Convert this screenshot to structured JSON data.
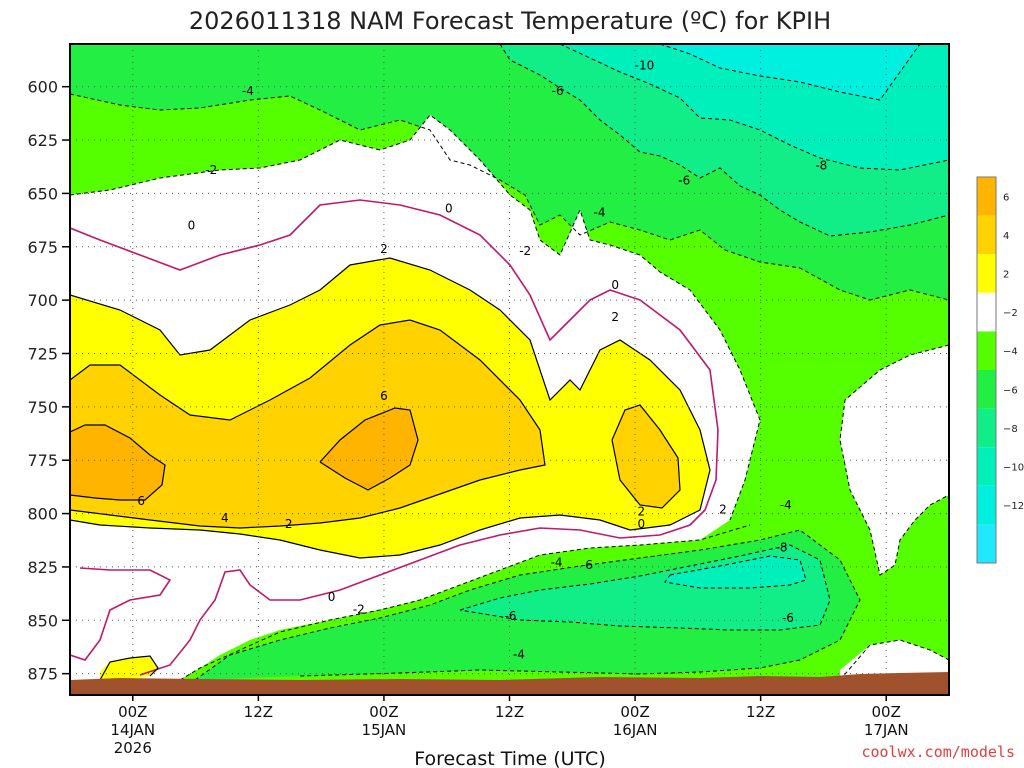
{
  "chart_data": {
    "type": "heatmap",
    "title": "2026011318 NAM Forecast Temperature (ºC) for KPIH",
    "xlabel": "Forecast Time (UTC)",
    "ylabel": "",
    "credit": "coolwx.com/models",
    "y_axis": {
      "ticks": [
        "600",
        "625",
        "650",
        "675",
        "700",
        "725",
        "750",
        "775",
        "800",
        "825",
        "850",
        "875"
      ],
      "range": [
        580,
        885
      ],
      "inverted": true,
      "unit": "hPa"
    },
    "x_axis": {
      "ticks": [
        {
          "time": "00Z",
          "date": "14JAN",
          "year": "2026"
        },
        {
          "time": "12Z",
          "date": "",
          "year": ""
        },
        {
          "time": "00Z",
          "date": "15JAN",
          "year": ""
        },
        {
          "time": "12Z",
          "date": "",
          "year": ""
        },
        {
          "time": "00Z",
          "date": "16JAN",
          "year": ""
        },
        {
          "time": "12Z",
          "date": "",
          "year": ""
        },
        {
          "time": "00Z",
          "date": "17JAN",
          "year": ""
        }
      ],
      "range_hours": [
        -6,
        78
      ],
      "tick_hours": [
        0,
        12,
        24,
        36,
        48,
        60,
        72
      ]
    },
    "grid": true,
    "colorbar": {
      "placement": "right",
      "bands": [
        {
          "range": [
            6,
            8
          ],
          "color": "#ffb400"
        },
        {
          "range": [
            4,
            6
          ],
          "color": "#ffd200"
        },
        {
          "range": [
            2,
            4
          ],
          "color": "#ffff00"
        },
        {
          "range": [
            -2,
            2
          ],
          "color": "#ffffff"
        },
        {
          "range": [
            -4,
            -2
          ],
          "color": "#55ff00"
        },
        {
          "range": [
            -6,
            -4
          ],
          "color": "#22ee44"
        },
        {
          "range": [
            -8,
            -6
          ],
          "color": "#11ee88"
        },
        {
          "range": [
            -10,
            -8
          ],
          "color": "#00f0bb"
        },
        {
          "range": [
            -12,
            -10
          ],
          "color": "#00f0e0"
        },
        {
          "range": [
            -14,
            -12
          ],
          "color": "#22e8ff"
        }
      ],
      "labels": [
        "6",
        "4",
        "2",
        "−2",
        "−4",
        "−6",
        "−8",
        "−10",
        "−12"
      ]
    },
    "contour_labels": [
      {
        "text": "-10",
        "hour": 48.9,
        "p": 590
      },
      {
        "text": "-4",
        "hour": 11.0,
        "p": 602
      },
      {
        "text": "-6",
        "hour": 40.6,
        "p": 602
      },
      {
        "text": "-2",
        "hour": 7.5,
        "p": 639
      },
      {
        "text": "-6",
        "hour": 52.7,
        "p": 644
      },
      {
        "text": "-8",
        "hour": 65.8,
        "p": 637
      },
      {
        "text": "0",
        "hour": 5.6,
        "p": 665
      },
      {
        "text": "0",
        "hour": 30.2,
        "p": 657
      },
      {
        "text": "-4",
        "hour": 44.6,
        "p": 659
      },
      {
        "text": "-2",
        "hour": 37.5,
        "p": 677
      },
      {
        "text": "2",
        "hour": 24.0,
        "p": 676
      },
      {
        "text": "0",
        "hour": 46.1,
        "p": 693
      },
      {
        "text": "2",
        "hour": 46.1,
        "p": 708
      },
      {
        "text": "6",
        "hour": 24.0,
        "p": 745
      },
      {
        "text": "6",
        "hour": 0.8,
        "p": 794
      },
      {
        "text": "4",
        "hour": 8.8,
        "p": 802
      },
      {
        "text": "2",
        "hour": 14.9,
        "p": 805
      },
      {
        "text": "2",
        "hour": 48.6,
        "p": 799
      },
      {
        "text": "0",
        "hour": 48.6,
        "p": 805
      },
      {
        "text": "2",
        "hour": 56.4,
        "p": 798
      },
      {
        "text": "-4",
        "hour": 62.4,
        "p": 796
      },
      {
        "text": "-4",
        "hour": 40.5,
        "p": 823
      },
      {
        "text": "-6",
        "hour": 43.4,
        "p": 824
      },
      {
        "text": "-8",
        "hour": 62.0,
        "p": 816
      },
      {
        "text": "0",
        "hour": 19.0,
        "p": 839
      },
      {
        "text": "-2",
        "hour": 21.6,
        "p": 845
      },
      {
        "text": "-6",
        "hour": 36.1,
        "p": 848
      },
      {
        "text": "-6",
        "hour": 62.6,
        "p": 849
      },
      {
        "text": "-4",
        "hour": 36.9,
        "p": 866
      }
    ]
  }
}
